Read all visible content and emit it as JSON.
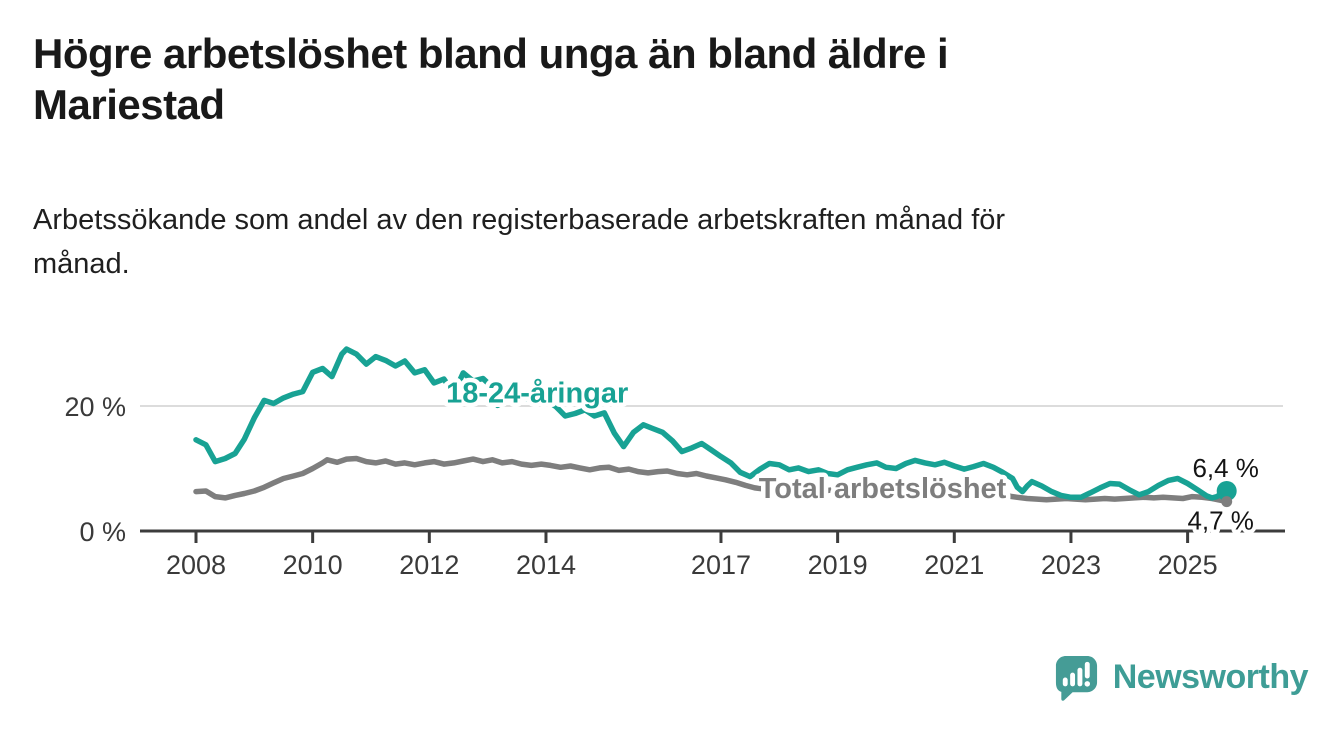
{
  "header": {
    "title": "Högre arbetslöshet bland unga än bland äldre i Mariestad",
    "title_lines": [
      "Högre arbetslöshet bland unga än bland äldre i",
      "Mariestad"
    ],
    "subtitle": "Arbetssökande som andel av den registerbaserade arbetskraften månad för månad.",
    "subtitle_lines": [
      "Arbetssökande som andel av den registerbaserade arbetskraften månad för",
      "månad."
    ]
  },
  "footer": {
    "brand": "Newsworthy",
    "logo_icon": "bar-chart-speech-bubble-icon",
    "brand_color": "#3e9d96"
  },
  "chart_data": {
    "type": "line",
    "title": "Högre arbetslöshet bland unga än bland äldre i Mariestad",
    "subtitle": "Arbetssökande som andel av den registerbaserade arbetskraften månad för månad.",
    "unit": "%",
    "grid": "horizontal-gridline-at-20-only",
    "legend_position": "inline-labels-on-lines",
    "x_axis": {
      "tick_values": [
        2008,
        2010,
        2012,
        2014,
        2017,
        2019,
        2021,
        2023,
        2025
      ],
      "tick_labels": [
        "2008",
        "2010",
        "2012",
        "2014",
        "2017",
        "2019",
        "2021",
        "2023",
        "2025"
      ],
      "range": [
        2007.0,
        2026.7
      ]
    },
    "y_axis": {
      "ticks": [
        {
          "value": 0,
          "label": "0 %"
        },
        {
          "value": 20,
          "label": "20 %"
        }
      ],
      "range": [
        0,
        32
      ]
    },
    "gridlines_y": [
      20
    ],
    "colors": {
      "youth": "#18a294",
      "total": "#7e7e7e",
      "axis": "#3c3c3c",
      "grid": "#dcdcdc"
    },
    "series": [
      {
        "name": "18-24-åringar",
        "label": "18-24-åringar",
        "color": "#18a294",
        "end_label": "6,4 %",
        "end_value": 6.4,
        "label_pos": {
          "year": 2013.85,
          "value": 20.6
        },
        "points": [
          [
            2008.0,
            14.6
          ],
          [
            2008.17,
            13.8
          ],
          [
            2008.33,
            11.1
          ],
          [
            2008.5,
            11.6
          ],
          [
            2008.67,
            12.4
          ],
          [
            2008.83,
            14.7
          ],
          [
            2009.0,
            18.1
          ],
          [
            2009.17,
            20.9
          ],
          [
            2009.33,
            20.4
          ],
          [
            2009.5,
            21.3
          ],
          [
            2009.67,
            21.9
          ],
          [
            2009.83,
            22.3
          ],
          [
            2010.0,
            25.4
          ],
          [
            2010.17,
            26.0
          ],
          [
            2010.33,
            24.7
          ],
          [
            2010.5,
            28.3
          ],
          [
            2010.58,
            29.1
          ],
          [
            2010.75,
            28.3
          ],
          [
            2010.92,
            26.7
          ],
          [
            2011.08,
            27.9
          ],
          [
            2011.25,
            27.3
          ],
          [
            2011.42,
            26.4
          ],
          [
            2011.58,
            27.2
          ],
          [
            2011.75,
            25.3
          ],
          [
            2011.92,
            25.8
          ],
          [
            2012.08,
            23.7
          ],
          [
            2012.25,
            24.3
          ],
          [
            2012.42,
            22.0
          ],
          [
            2012.58,
            25.3
          ],
          [
            2012.75,
            24.0
          ],
          [
            2012.92,
            24.4
          ],
          [
            2013.08,
            23.0
          ],
          [
            2013.17,
            20.1
          ],
          [
            2013.33,
            21.0
          ],
          [
            2013.5,
            22.1
          ],
          [
            2013.67,
            21.2
          ],
          [
            2013.83,
            21.7
          ],
          [
            2014.0,
            21.0
          ],
          [
            2014.17,
            19.9
          ],
          [
            2014.33,
            18.4
          ],
          [
            2014.5,
            18.8
          ],
          [
            2014.67,
            19.4
          ],
          [
            2014.83,
            18.4
          ],
          [
            2015.0,
            18.9
          ],
          [
            2015.17,
            15.7
          ],
          [
            2015.33,
            13.5
          ],
          [
            2015.5,
            15.8
          ],
          [
            2015.67,
            17.0
          ],
          [
            2015.83,
            16.4
          ],
          [
            2016.0,
            15.8
          ],
          [
            2016.17,
            14.4
          ],
          [
            2016.33,
            12.7
          ],
          [
            2016.5,
            13.3
          ],
          [
            2016.67,
            14.0
          ],
          [
            2016.83,
            13.0
          ],
          [
            2017.0,
            11.9
          ],
          [
            2017.17,
            10.9
          ],
          [
            2017.33,
            9.4
          ],
          [
            2017.5,
            8.7
          ],
          [
            2017.67,
            9.9
          ],
          [
            2017.83,
            10.8
          ],
          [
            2018.0,
            10.6
          ],
          [
            2018.17,
            9.8
          ],
          [
            2018.33,
            10.1
          ],
          [
            2018.5,
            9.5
          ],
          [
            2018.67,
            9.8
          ],
          [
            2018.83,
            9.2
          ],
          [
            2019.0,
            9.0
          ],
          [
            2019.17,
            9.8
          ],
          [
            2019.33,
            10.2
          ],
          [
            2019.5,
            10.6
          ],
          [
            2019.67,
            10.9
          ],
          [
            2019.83,
            10.2
          ],
          [
            2020.0,
            10.0
          ],
          [
            2020.17,
            10.8
          ],
          [
            2020.33,
            11.3
          ],
          [
            2020.5,
            10.9
          ],
          [
            2020.67,
            10.6
          ],
          [
            2020.83,
            11.0
          ],
          [
            2021.0,
            10.4
          ],
          [
            2021.17,
            9.9
          ],
          [
            2021.33,
            10.3
          ],
          [
            2021.5,
            10.8
          ],
          [
            2021.67,
            10.2
          ],
          [
            2021.83,
            9.4
          ],
          [
            2022.0,
            8.4
          ],
          [
            2022.08,
            7.0
          ],
          [
            2022.17,
            6.3
          ],
          [
            2022.25,
            7.2
          ],
          [
            2022.33,
            7.9
          ],
          [
            2022.5,
            7.2
          ],
          [
            2022.67,
            6.3
          ],
          [
            2022.83,
            5.7
          ],
          [
            2023.0,
            5.4
          ],
          [
            2023.17,
            5.4
          ],
          [
            2023.33,
            6.1
          ],
          [
            2023.5,
            6.9
          ],
          [
            2023.67,
            7.6
          ],
          [
            2023.83,
            7.5
          ],
          [
            2024.0,
            6.6
          ],
          [
            2024.17,
            5.8
          ],
          [
            2024.33,
            6.3
          ],
          [
            2024.5,
            7.3
          ],
          [
            2024.67,
            8.1
          ],
          [
            2024.83,
            8.4
          ],
          [
            2025.0,
            7.6
          ],
          [
            2025.17,
            6.6
          ],
          [
            2025.33,
            5.6
          ],
          [
            2025.42,
            5.3
          ],
          [
            2025.5,
            5.5
          ],
          [
            2025.58,
            5.9
          ],
          [
            2025.67,
            6.4
          ]
        ]
      },
      {
        "name": "Total arbetslöshet",
        "label": "Total arbetslöshet",
        "color": "#7e7e7e",
        "end_label": "4,7 %",
        "end_value": 4.7,
        "label_pos": {
          "year": 2019.77,
          "value": 5.3
        },
        "points": [
          [
            2008.0,
            6.3
          ],
          [
            2008.17,
            6.4
          ],
          [
            2008.33,
            5.5
          ],
          [
            2008.5,
            5.3
          ],
          [
            2008.67,
            5.7
          ],
          [
            2008.83,
            6.0
          ],
          [
            2009.0,
            6.4
          ],
          [
            2009.17,
            7.0
          ],
          [
            2009.33,
            7.7
          ],
          [
            2009.5,
            8.4
          ],
          [
            2009.67,
            8.8
          ],
          [
            2009.83,
            9.2
          ],
          [
            2010.0,
            10.0
          ],
          [
            2010.17,
            10.9
          ],
          [
            2010.25,
            11.4
          ],
          [
            2010.42,
            11.0
          ],
          [
            2010.58,
            11.5
          ],
          [
            2010.75,
            11.6
          ],
          [
            2010.92,
            11.1
          ],
          [
            2011.08,
            10.9
          ],
          [
            2011.25,
            11.2
          ],
          [
            2011.42,
            10.7
          ],
          [
            2011.58,
            10.9
          ],
          [
            2011.75,
            10.6
          ],
          [
            2011.92,
            10.9
          ],
          [
            2012.08,
            11.1
          ],
          [
            2012.25,
            10.7
          ],
          [
            2012.42,
            10.9
          ],
          [
            2012.58,
            11.2
          ],
          [
            2012.75,
            11.5
          ],
          [
            2012.92,
            11.1
          ],
          [
            2013.08,
            11.4
          ],
          [
            2013.25,
            10.9
          ],
          [
            2013.42,
            11.1
          ],
          [
            2013.58,
            10.7
          ],
          [
            2013.75,
            10.5
          ],
          [
            2013.92,
            10.7
          ],
          [
            2014.08,
            10.5
          ],
          [
            2014.25,
            10.2
          ],
          [
            2014.42,
            10.4
          ],
          [
            2014.58,
            10.1
          ],
          [
            2014.75,
            9.8
          ],
          [
            2014.92,
            10.1
          ],
          [
            2015.08,
            10.2
          ],
          [
            2015.25,
            9.7
          ],
          [
            2015.42,
            9.9
          ],
          [
            2015.58,
            9.5
          ],
          [
            2015.75,
            9.3
          ],
          [
            2015.92,
            9.5
          ],
          [
            2016.08,
            9.6
          ],
          [
            2016.25,
            9.2
          ],
          [
            2016.42,
            9.0
          ],
          [
            2016.58,
            9.2
          ],
          [
            2016.75,
            8.8
          ],
          [
            2016.92,
            8.5
          ],
          [
            2017.08,
            8.2
          ],
          [
            2017.25,
            7.8
          ],
          [
            2017.42,
            7.3
          ],
          [
            2017.58,
            6.9
          ],
          [
            2017.75,
            6.7
          ],
          [
            2017.92,
            6.9
          ],
          [
            2018.08,
            6.8
          ],
          [
            2018.25,
            6.6
          ],
          [
            2018.42,
            6.7
          ],
          [
            2018.58,
            6.5
          ],
          [
            2018.75,
            6.4
          ],
          [
            2018.92,
            6.6
          ],
          [
            2019.08,
            6.4
          ],
          [
            2019.25,
            6.2
          ],
          [
            2019.42,
            6.3
          ],
          [
            2019.58,
            6.1
          ],
          [
            2019.75,
            6.0
          ],
          [
            2019.92,
            6.2
          ],
          [
            2020.08,
            6.6
          ],
          [
            2020.25,
            6.9
          ],
          [
            2020.42,
            7.0
          ],
          [
            2020.58,
            6.8
          ],
          [
            2020.75,
            6.7
          ],
          [
            2020.92,
            6.6
          ],
          [
            2021.08,
            6.4
          ],
          [
            2021.25,
            6.2
          ],
          [
            2021.42,
            6.1
          ],
          [
            2021.58,
            5.9
          ],
          [
            2021.75,
            5.8
          ],
          [
            2021.92,
            5.6
          ],
          [
            2022.08,
            5.4
          ],
          [
            2022.25,
            5.2
          ],
          [
            2022.42,
            5.1
          ],
          [
            2022.58,
            5.0
          ],
          [
            2022.75,
            5.1
          ],
          [
            2022.92,
            5.2
          ],
          [
            2023.08,
            5.1
          ],
          [
            2023.25,
            5.0
          ],
          [
            2023.42,
            5.1
          ],
          [
            2023.58,
            5.2
          ],
          [
            2023.75,
            5.1
          ],
          [
            2023.92,
            5.2
          ],
          [
            2024.08,
            5.3
          ],
          [
            2024.25,
            5.4
          ],
          [
            2024.42,
            5.3
          ],
          [
            2024.58,
            5.4
          ],
          [
            2024.75,
            5.3
          ],
          [
            2024.92,
            5.2
          ],
          [
            2025.08,
            5.5
          ],
          [
            2025.25,
            5.4
          ],
          [
            2025.42,
            5.2
          ],
          [
            2025.58,
            4.9
          ],
          [
            2025.67,
            4.7
          ]
        ]
      }
    ]
  }
}
